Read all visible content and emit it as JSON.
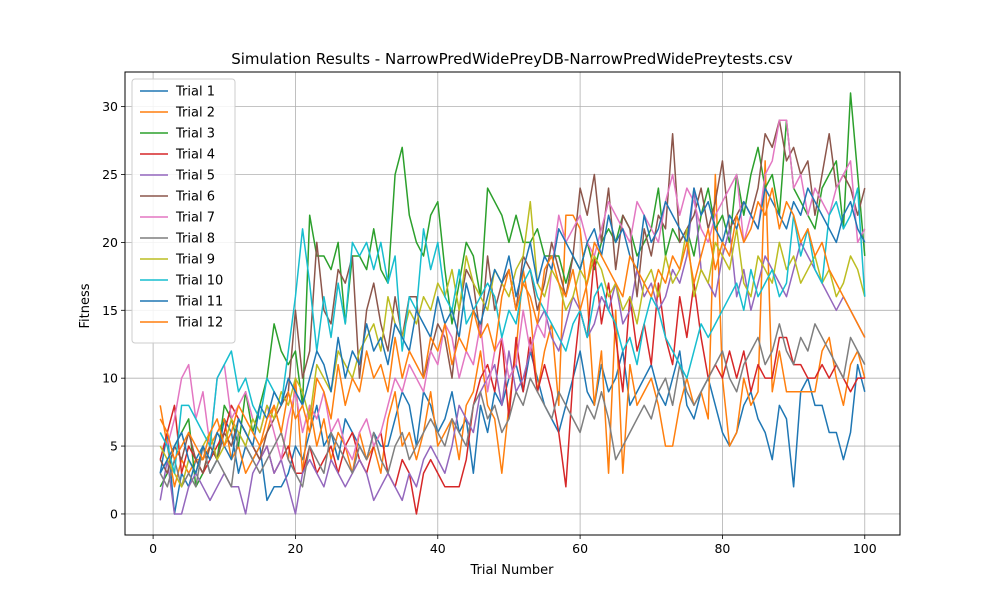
{
  "chart_data": {
    "type": "line",
    "title": "Simulation Results - NarrowPredWidePreyDB-NarrowPredWidePreytests.csv",
    "xlabel": "Trial Number",
    "ylabel": "Fitness",
    "xlim": [
      -3.95,
      104.95
    ],
    "ylim": [
      -1.55,
      32.55
    ],
    "xticks": [
      0,
      20,
      40,
      60,
      80,
      100
    ],
    "yticks": [
      0,
      5,
      10,
      15,
      20,
      25,
      30
    ],
    "grid": true,
    "legend_position": "upper-left",
    "x": [
      1,
      2,
      3,
      4,
      5,
      6,
      7,
      8,
      9,
      10,
      11,
      12,
      13,
      14,
      15,
      16,
      17,
      18,
      19,
      20,
      21,
      22,
      23,
      24,
      25,
      26,
      27,
      28,
      29,
      30,
      31,
      32,
      33,
      34,
      35,
      36,
      37,
      38,
      39,
      40,
      41,
      42,
      43,
      44,
      45,
      46,
      47,
      48,
      49,
      50,
      51,
      52,
      53,
      54,
      55,
      56,
      57,
      58,
      59,
      60,
      61,
      62,
      63,
      64,
      65,
      66,
      67,
      68,
      69,
      70,
      71,
      72,
      73,
      74,
      75,
      76,
      77,
      78,
      79,
      80,
      81,
      82,
      83,
      84,
      85,
      86,
      87,
      88,
      89,
      90,
      91,
      92,
      93,
      94,
      95,
      96,
      97,
      98,
      99,
      100
    ],
    "series": [
      {
        "name": "Trial 1",
        "color": "#1f77b4",
        "values": [
          3,
          6,
          0,
          3,
          2,
          4,
          5,
          3,
          4,
          7,
          6,
          3,
          5,
          4,
          5,
          1,
          2,
          2,
          3,
          5,
          4,
          6,
          8,
          5,
          6,
          4,
          7,
          6,
          5,
          4,
          6,
          5,
          5,
          7,
          9,
          8,
          5,
          9,
          8,
          6,
          7,
          9,
          6,
          7,
          3,
          8,
          6,
          9,
          8,
          10,
          11,
          9,
          12,
          10,
          8,
          7,
          6,
          8,
          10,
          12,
          9,
          8,
          11,
          9,
          10,
          12,
          8,
          9,
          10,
          11,
          9,
          8,
          10,
          12,
          8,
          7,
          9,
          10,
          8,
          6,
          5,
          6,
          8,
          9,
          7,
          6,
          4,
          8,
          7,
          2,
          9,
          10,
          8,
          8,
          6,
          6,
          4,
          6,
          11,
          9
        ]
      },
      {
        "name": "Trial 2",
        "color": "#ff7f0e",
        "values": [
          8,
          5,
          2,
          4,
          3,
          4,
          4,
          5,
          6,
          7,
          4,
          5,
          3,
          4,
          5,
          6,
          8,
          6,
          4,
          10,
          3,
          8,
          5,
          7,
          4,
          6,
          5,
          3,
          6,
          4,
          5,
          3,
          7,
          9,
          5,
          6,
          4,
          6,
          9,
          5,
          6,
          7,
          4,
          8,
          9,
          12,
          8,
          7,
          3,
          8,
          12,
          18,
          15,
          9,
          12,
          14,
          8,
          22,
          22,
          21,
          16,
          8,
          12,
          3,
          15,
          3,
          11,
          8,
          9,
          10,
          8,
          5,
          5,
          8,
          10,
          8,
          9,
          7,
          25,
          10,
          5,
          6,
          10,
          8,
          9,
          26,
          9,
          12,
          9,
          9,
          9,
          9,
          9,
          12,
          13,
          10,
          8,
          11,
          12,
          10
        ]
      },
      {
        "name": "Trial 3",
        "color": "#2ca02c",
        "values": [
          2,
          3,
          5,
          6,
          7,
          2,
          3,
          5,
          4,
          8,
          7,
          5,
          9,
          6,
          8,
          10,
          14,
          12,
          11,
          12,
          8,
          22,
          19,
          19,
          18,
          20,
          14,
          19,
          19,
          18,
          21,
          18,
          17,
          25,
          27,
          22,
          20,
          19,
          22,
          23,
          18,
          14,
          17,
          20,
          19,
          16,
          24,
          23,
          22,
          20,
          22,
          20,
          20,
          21,
          19,
          19,
          19,
          17,
          19,
          18,
          20,
          18,
          20,
          21,
          20,
          22,
          21,
          19,
          20,
          21,
          24,
          19,
          21,
          20,
          21,
          19,
          22,
          24,
          21,
          22,
          20,
          25,
          22,
          25,
          27,
          24,
          25,
          22,
          29,
          24,
          23,
          22,
          21,
          24,
          25,
          26,
          21,
          31,
          25,
          19
        ]
      },
      {
        "name": "Trial 4",
        "color": "#d62728",
        "values": [
          4,
          6,
          8,
          3,
          5,
          4,
          3,
          4,
          5,
          6,
          8,
          7,
          6,
          5,
          4,
          5,
          3,
          4,
          5,
          3,
          3,
          5,
          3,
          4,
          5,
          3,
          5,
          6,
          4,
          3,
          5,
          6,
          3,
          2,
          4,
          3,
          0,
          3,
          4,
          3,
          2,
          2,
          2,
          4,
          8,
          10,
          11,
          9,
          13,
          7,
          13,
          9,
          13,
          9,
          11,
          9,
          6,
          2,
          10,
          15,
          13,
          19,
          14,
          17,
          13,
          9,
          16,
          12,
          14,
          11,
          17,
          13,
          11,
          16,
          13,
          17,
          13,
          10,
          11,
          10,
          12,
          10,
          12,
          9,
          11,
          10,
          10,
          13,
          13,
          11,
          11,
          10,
          10,
          11,
          10,
          11,
          10,
          9,
          10,
          10
        ]
      },
      {
        "name": "Trial 5",
        "color": "#9467bd",
        "values": [
          1,
          4,
          0,
          0,
          2,
          3,
          2,
          1,
          2,
          3,
          2,
          2,
          0,
          3,
          4,
          5,
          3,
          4,
          2,
          0,
          3,
          4,
          3,
          2,
          4,
          3,
          2,
          3,
          4,
          3,
          1,
          2,
          3,
          2,
          1,
          3,
          2,
          4,
          5,
          4,
          3,
          5,
          8,
          7,
          6,
          9,
          10,
          11,
          8,
          12,
          9,
          10,
          12,
          14,
          15,
          13,
          12,
          14,
          16,
          15,
          13,
          14,
          16,
          15,
          17,
          14,
          15,
          18,
          16,
          17,
          15,
          16,
          18,
          17,
          19,
          24,
          18,
          17,
          16,
          19,
          21,
          16,
          18,
          15,
          17,
          19,
          18,
          17,
          16,
          18,
          20,
          19,
          18,
          17,
          16,
          15,
          16,
          15,
          14,
          13
        ]
      },
      {
        "name": "Trial 6",
        "color": "#8c564b",
        "values": [
          4,
          3,
          5,
          4,
          6,
          4,
          3,
          5,
          4,
          6,
          5,
          7,
          6,
          5,
          4,
          6,
          7,
          8,
          9,
          15,
          10,
          12,
          20,
          15,
          14,
          18,
          17,
          19,
          10,
          15,
          17,
          14,
          12,
          16,
          13,
          16,
          16,
          10,
          12,
          14,
          13,
          10,
          15,
          18,
          17,
          13,
          19,
          15,
          17,
          18,
          15,
          19,
          18,
          15,
          17,
          20,
          18,
          16,
          19,
          24,
          22,
          25,
          20,
          24,
          18,
          22,
          21,
          16,
          21,
          19,
          22,
          21,
          28,
          20,
          21,
          22,
          24,
          21,
          23,
          26,
          21,
          22,
          23,
          22,
          24,
          28,
          27,
          29,
          26,
          27,
          25,
          26,
          22,
          25,
          28,
          24,
          25,
          24,
          22,
          24
        ]
      },
      {
        "name": "Trial 7",
        "color": "#e377c2",
        "values": [
          6,
          5,
          7,
          10,
          11,
          7,
          9,
          5,
          10,
          11,
          7,
          8,
          9,
          7,
          6,
          8,
          6,
          4,
          7,
          9,
          6,
          8,
          7,
          9,
          6,
          7,
          5,
          4,
          6,
          7,
          5,
          6,
          8,
          10,
          9,
          11,
          10,
          9,
          12,
          11,
          14,
          13,
          10,
          12,
          11,
          14,
          9,
          12,
          13,
          10,
          11,
          15,
          12,
          14,
          13,
          18,
          22,
          20,
          21,
          22,
          20,
          19,
          21,
          23,
          22,
          21,
          20,
          23,
          22,
          21,
          20,
          23,
          25,
          22,
          24,
          23,
          21,
          20,
          22,
          23,
          24,
          25,
          20,
          22,
          21,
          25,
          26,
          29,
          29,
          24,
          25,
          22,
          24,
          23,
          22,
          24,
          25,
          26,
          20,
          21
        ]
      },
      {
        "name": "Trial 8",
        "color": "#7f7f7f",
        "values": [
          3,
          2,
          4,
          2,
          3,
          2,
          5,
          3,
          4,
          3,
          2,
          6,
          5,
          4,
          3,
          4,
          5,
          6,
          4,
          3,
          2,
          5,
          4,
          3,
          6,
          5,
          4,
          3,
          5,
          4,
          6,
          4,
          3,
          5,
          6,
          4,
          5,
          6,
          7,
          6,
          5,
          7,
          6,
          5,
          8,
          9,
          7,
          8,
          6,
          7,
          9,
          8,
          10,
          9,
          8,
          7,
          9,
          8,
          7,
          6,
          8,
          7,
          9,
          7,
          4,
          5,
          6,
          7,
          8,
          7,
          9,
          10,
          8,
          11,
          9,
          8,
          9,
          10,
          11,
          12,
          10,
          9,
          11,
          12,
          13,
          11,
          12,
          14,
          12,
          11,
          13,
          12,
          14,
          13,
          12,
          11,
          10,
          13,
          12,
          11
        ]
      },
      {
        "name": "Trial 9",
        "color": "#bcbd22",
        "values": [
          5,
          4,
          3,
          2,
          4,
          3,
          5,
          6,
          4,
          5,
          7,
          6,
          5,
          7,
          6,
          8,
          7,
          9,
          8,
          10,
          9,
          7,
          11,
          10,
          9,
          12,
          11,
          10,
          12,
          13,
          14,
          12,
          16,
          14,
          13,
          15,
          14,
          16,
          15,
          17,
          16,
          18,
          15,
          19,
          17,
          16,
          15,
          18,
          17,
          16,
          18,
          19,
          23,
          17,
          16,
          18,
          17,
          15,
          16,
          18,
          17,
          19,
          18,
          16,
          17,
          15,
          16,
          14,
          17,
          18,
          16,
          19,
          17,
          18,
          21,
          16,
          18,
          17,
          20,
          19,
          18,
          21,
          17,
          16,
          19,
          18,
          17,
          20,
          18,
          19,
          17,
          18,
          19,
          17,
          18,
          16,
          17,
          19,
          18,
          16
        ]
      },
      {
        "name": "Trial 10",
        "color": "#17becf",
        "values": [
          6,
          5,
          3,
          8,
          8,
          7,
          6,
          5,
          10,
          11,
          12,
          9,
          10,
          8,
          7,
          10,
          9,
          8,
          12,
          16,
          21,
          17,
          12,
          16,
          13,
          17,
          14,
          20,
          19,
          20,
          18,
          20,
          17,
          19,
          12,
          16,
          15,
          21,
          18,
          20,
          16,
          15,
          18,
          14,
          15,
          16,
          17,
          16,
          13,
          15,
          14,
          17,
          18,
          16,
          15,
          14,
          13,
          12,
          14,
          15,
          13,
          16,
          17,
          15,
          14,
          12,
          13,
          11,
          14,
          16,
          15,
          13,
          12,
          11,
          10,
          12,
          14,
          13,
          14,
          15,
          16,
          17,
          15,
          18,
          16,
          17,
          18,
          16,
          17,
          22,
          19,
          21,
          18,
          17,
          22,
          23,
          21,
          22,
          24,
          16
        ]
      },
      {
        "name": "Trial 11",
        "color": "#1f77b4",
        "values": [
          3,
          4,
          5,
          6,
          4,
          3,
          5,
          4,
          6,
          5,
          4,
          7,
          6,
          5,
          8,
          7,
          9,
          8,
          10,
          9,
          8,
          10,
          12,
          11,
          9,
          13,
          10,
          12,
          11,
          14,
          12,
          13,
          11,
          14,
          13,
          12,
          15,
          14,
          13,
          16,
          14,
          15,
          13,
          17,
          15,
          14,
          16,
          18,
          17,
          19,
          16,
          18,
          20,
          17,
          19,
          18,
          21,
          20,
          19,
          18,
          20,
          21,
          19,
          22,
          20,
          21,
          19,
          18,
          22,
          20,
          21,
          23,
          22,
          21,
          20,
          24,
          22,
          23,
          21,
          20,
          22,
          21,
          23,
          22,
          21,
          24,
          23,
          22,
          21,
          23,
          22,
          24,
          23,
          22,
          21,
          20,
          22,
          23,
          21,
          20
        ]
      },
      {
        "name": "Trial 12",
        "color": "#ff7f0e",
        "values": [
          7,
          6,
          4,
          5,
          6,
          5,
          4,
          6,
          7,
          5,
          6,
          8,
          7,
          6,
          5,
          7,
          8,
          6,
          9,
          7,
          8,
          6,
          10,
          9,
          7,
          11,
          8,
          10,
          9,
          12,
          10,
          11,
          9,
          13,
          10,
          12,
          11,
          10,
          13,
          12,
          14,
          11,
          13,
          12,
          15,
          13,
          14,
          12,
          16,
          18,
          15,
          17,
          16,
          14,
          18,
          19,
          17,
          16,
          18,
          15,
          17,
          20,
          19,
          18,
          17,
          16,
          19,
          18,
          17,
          16,
          18,
          17,
          19,
          18,
          20,
          17,
          19,
          21,
          18,
          20,
          19,
          22,
          20,
          21,
          23,
          22,
          24,
          21,
          23,
          22,
          20,
          21,
          19,
          20,
          18,
          17,
          16,
          15,
          14,
          13
        ]
      }
    ]
  }
}
